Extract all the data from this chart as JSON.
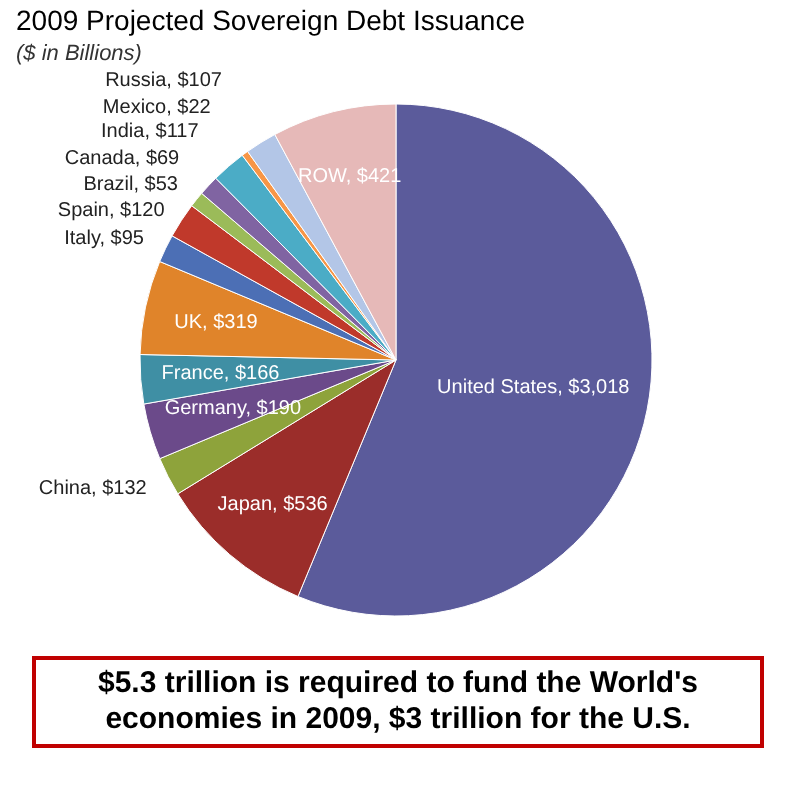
{
  "chart_data": {
    "type": "pie",
    "title": "2009 Projected Sovereign Debt Issuance",
    "subtitle": "($ in Billions)",
    "categories": [
      "United States",
      "Japan",
      "China",
      "Germany",
      "France",
      "UK",
      "Italy",
      "Spain",
      "Brazil",
      "Canada",
      "India",
      "Mexico",
      "Russia",
      "ROW"
    ],
    "values": [
      3018,
      536,
      132,
      190,
      166,
      319,
      95,
      120,
      53,
      69,
      117,
      22,
      107,
      421
    ],
    "value_labels": [
      "$3,018",
      "$536",
      "$132",
      "$190",
      "$166",
      "$319",
      "$95",
      "$120",
      "$53",
      "$69",
      "$117",
      "$22",
      "$107",
      "$421"
    ],
    "colors": [
      "#5b5b9b",
      "#9b2d2a",
      "#8ea33b",
      "#6b4a8a",
      "#3f8fa4",
      "#e0842a",
      "#4c6fb5",
      "#c0392b",
      "#9bbb59",
      "#8064a2",
      "#4bacc6",
      "#f79646",
      "#b3c6e7",
      "#e6b9b8"
    ],
    "annotations": [
      "$5.3 trillion is required to fund the World's economies in 2009, $3 trillion for the U.S."
    ]
  }
}
